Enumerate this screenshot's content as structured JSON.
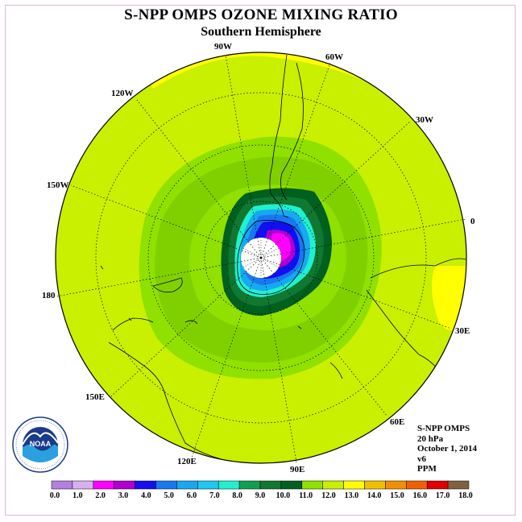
{
  "title": "S-NPP OMPS OZONE MIXING RATIO",
  "subtitle": "Southern Hemisphere",
  "longitude_labels": {
    "l90w": "90W",
    "l60w": "60W",
    "l120w": "120W",
    "l30w": "30W",
    "l150w": "150W",
    "l0": "0",
    "l180": "180",
    "l30e": "30E",
    "l150e": "150E",
    "l60e": "60E",
    "l120e": "120E",
    "l90e": "90E"
  },
  "info": {
    "instrument": "S-NPP OMPS",
    "level": "20 hPa",
    "date": "October 1, 2014",
    "version": "v6",
    "units": "PPM"
  },
  "logo": {
    "text": "NOAA"
  },
  "colorbar": {
    "ticks": [
      "0.0",
      "1.0",
      "2.0",
      "3.0",
      "4.0",
      "5.0",
      "6.0",
      "7.0",
      "8.0",
      "9.0",
      "10.0",
      "11.0",
      "12.0",
      "13.0",
      "14.0",
      "15.0",
      "16.0",
      "17.0",
      "18.0"
    ],
    "colors": [
      "#b57fe0",
      "#d8b0f0",
      "#ff00ff",
      "#b000d0",
      "#1010f0",
      "#1878f0",
      "#18a8f0",
      "#20c8f0",
      "#20f0d0",
      "#10a050",
      "#107830",
      "#006020",
      "#90e000",
      "#c8f000",
      "#ffff00",
      "#f0c000",
      "#f09000",
      "#f06000",
      "#e00000",
      "#806040"
    ]
  }
}
